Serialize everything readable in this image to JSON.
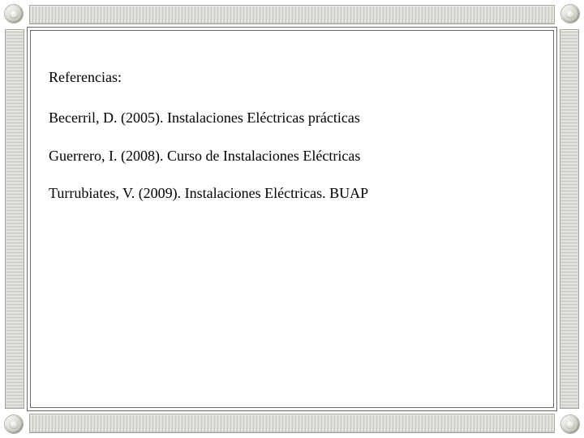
{
  "slide": {
    "heading": "Referencias:",
    "references": [
      "Becerril, D. (2005). Instalaciones Eléctricas prácticas",
      "Guerrero, I. (2008). Curso de Instalaciones Eléctricas",
      "Turrubiates, V. (2009). Instalaciones Eléctricas. BUAP"
    ]
  },
  "style": {
    "background_color": "#ffffff",
    "text_color": "#000000",
    "font_family": "Times New Roman",
    "heading_fontsize": 18,
    "body_fontsize": 18,
    "frame_bar_width": 22,
    "frame_corner_diameter": 22,
    "frame_bar_fill": "#d6d6d0",
    "frame_bar_highlight": "#f0f0ea",
    "frame_bar_shadow": "#c2c2ba",
    "inner_border_color": "#6b6b63"
  }
}
